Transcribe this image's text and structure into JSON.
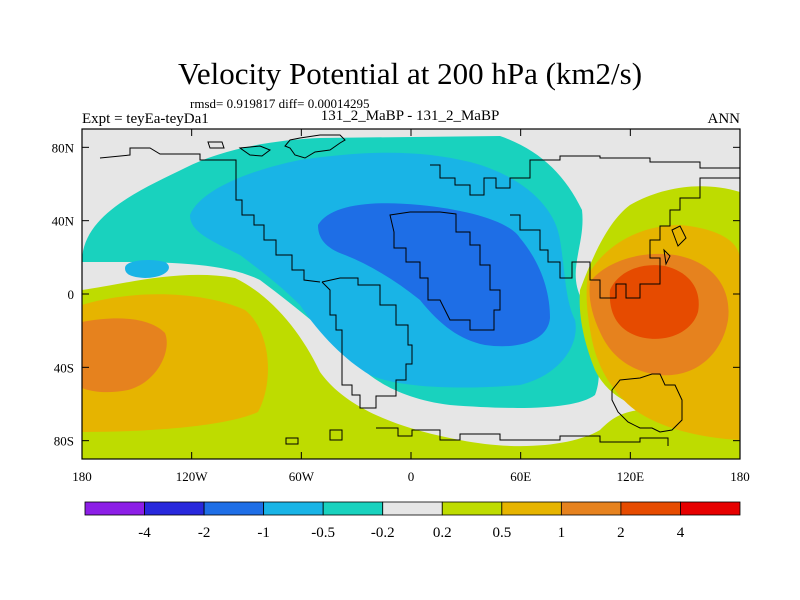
{
  "chart_data": {
    "type": "heatmap",
    "title": "Velocity Potential at 200 hPa (km2/s)",
    "stats": "rmsd= 0.919817 diff= 0.00014295",
    "left_label": "Expt = teyEa-teyDa1",
    "center_label": "131_2_MaBP - 131_2_MaBP",
    "right_label": "ANN",
    "x_ticks": [
      "180",
      "120W",
      "60W",
      "0",
      "60E",
      "120E",
      "180"
    ],
    "x_tick_values": [
      -180,
      -120,
      -60,
      0,
      60,
      120,
      180
    ],
    "y_ticks": [
      "80N",
      "40N",
      "0",
      "40S",
      "80S"
    ],
    "y_tick_values": [
      80,
      40,
      0,
      -40,
      -80
    ],
    "xlim": [
      -180,
      180
    ],
    "ylim": [
      -90,
      90
    ],
    "colorbar": {
      "labels": [
        "-4",
        "-2",
        "-1",
        "-0.5",
        "-0.2",
        "0.2",
        "0.5",
        "1",
        "2",
        "4"
      ],
      "levels": [
        -4,
        -2,
        -1,
        -0.5,
        -0.2,
        0.2,
        0.5,
        1,
        2,
        4
      ],
      "colors": [
        "#8c1ee6",
        "#2828dc",
        "#1e6ee6",
        "#19b4e6",
        "#19d2be",
        "#e6e6e6",
        "#bedc00",
        "#e6b400",
        "#e6821e",
        "#e64b00",
        "#e60000"
      ]
    },
    "regions": [
      {
        "name": "region-green-pacific",
        "level": 0.2,
        "color": "#bedc00"
      },
      {
        "name": "region-orange-west",
        "level": 0.5,
        "color": "#e6b400"
      },
      {
        "name": "region-darkorange-west",
        "level": 1,
        "color": "#e6821e"
      },
      {
        "name": "region-teal-main",
        "level": -0.2,
        "color": "#19d2be"
      },
      {
        "name": "region-cyan-main",
        "level": -0.5,
        "color": "#19b4e6"
      },
      {
        "name": "region-blue-main",
        "level": -1,
        "color": "#1e6ee6"
      },
      {
        "name": "region-cyan-blob",
        "level": -0.5,
        "color": "#19b4e6"
      },
      {
        "name": "region-green-east",
        "level": 0.2,
        "color": "#bedc00"
      },
      {
        "name": "region-orange-east",
        "level": 0.5,
        "color": "#e6b400"
      },
      {
        "name": "region-darkorange-east",
        "level": 1,
        "color": "#e6821e"
      },
      {
        "name": "region-red-east",
        "level": 2,
        "color": "#e64b00"
      }
    ]
  }
}
